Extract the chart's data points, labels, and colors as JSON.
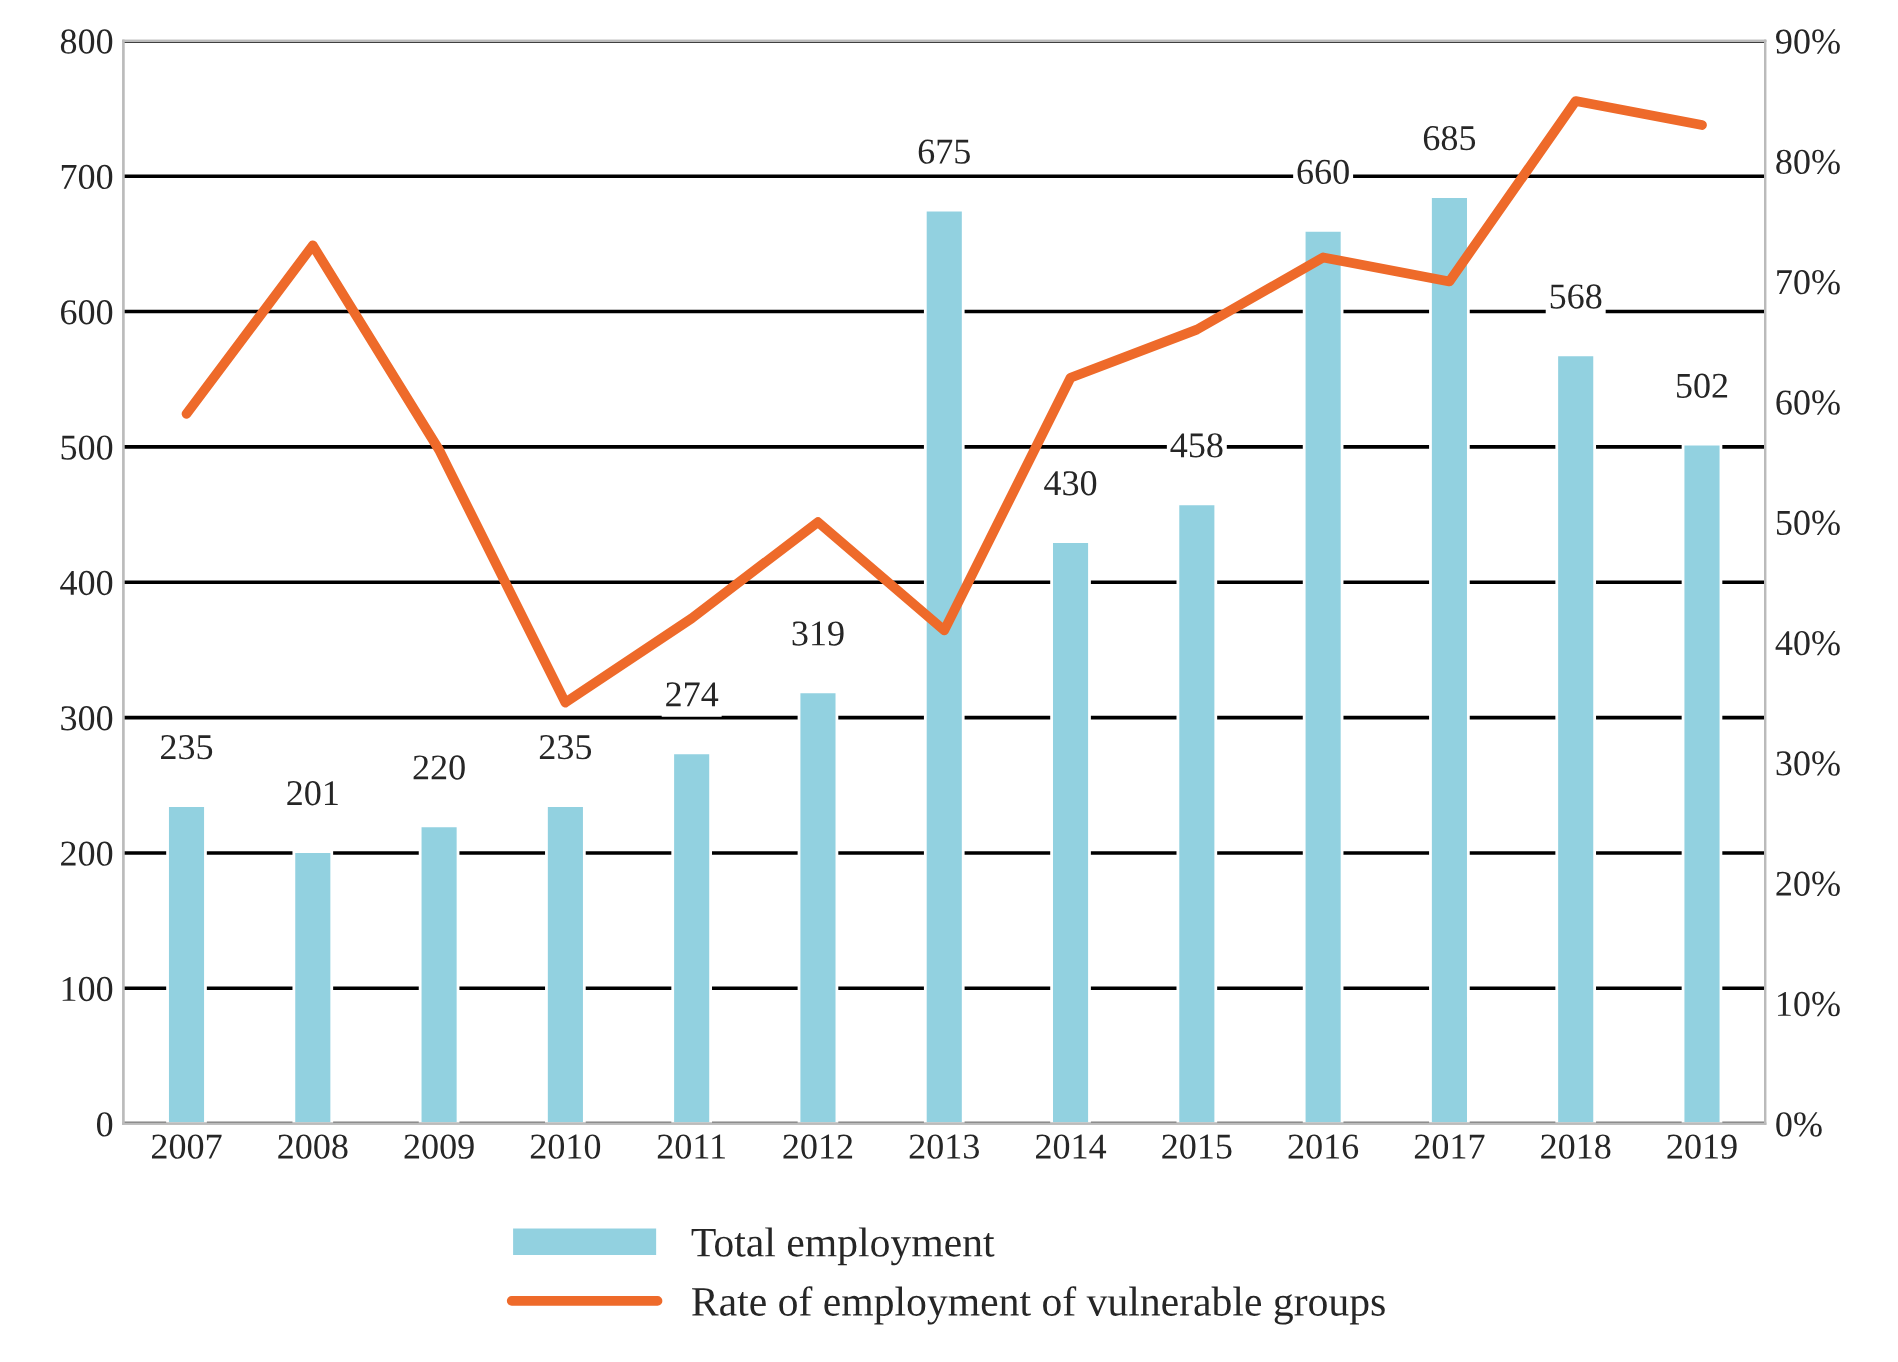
{
  "chart_data": {
    "type": "bar",
    "categories": [
      "2007",
      "2008",
      "2009",
      "2010",
      "2011",
      "2012",
      "2013",
      "2014",
      "2015",
      "2016",
      "2017",
      "2018",
      "2019"
    ],
    "series": [
      {
        "name": "Total employment",
        "color": "#92d1e0",
        "values": [
          235,
          201,
          220,
          235,
          274,
          319,
          675,
          430,
          458,
          660,
          685,
          568,
          502
        ],
        "value_labels": [
          "235",
          "201",
          "220",
          "235",
          "274",
          "319",
          "675",
          "430",
          "458",
          "660",
          "685",
          "568",
          "502"
        ]
      },
      {
        "name": "Rate of employment of vulnerable groups",
        "type": "line",
        "axis": "y2",
        "color": "#ee6a2a",
        "values": [
          59,
          73,
          56,
          35,
          42,
          50,
          41,
          62,
          66,
          72,
          70,
          85,
          83
        ]
      }
    ],
    "ylim": [
      0,
      800
    ],
    "yticks": [
      0,
      100,
      200,
      300,
      400,
      500,
      600,
      700,
      800
    ],
    "y2lim": [
      0,
      90
    ],
    "y2ticks": [
      {
        "value": 0,
        "label": "0%"
      },
      {
        "value": 10,
        "label": "10%"
      },
      {
        "value": 20,
        "label": "20%"
      },
      {
        "value": 30,
        "label": "30%"
      },
      {
        "value": 40,
        "label": "40%"
      },
      {
        "value": 50,
        "label": "50%"
      },
      {
        "value": 60,
        "label": "60%"
      },
      {
        "value": 70,
        "label": "70%"
      },
      {
        "value": 80,
        "label": "80%"
      },
      {
        "value": 90,
        "label": "90%"
      }
    ],
    "grid": "y",
    "legend": "bottom",
    "marker": "none",
    "line_style": "solid"
  }
}
